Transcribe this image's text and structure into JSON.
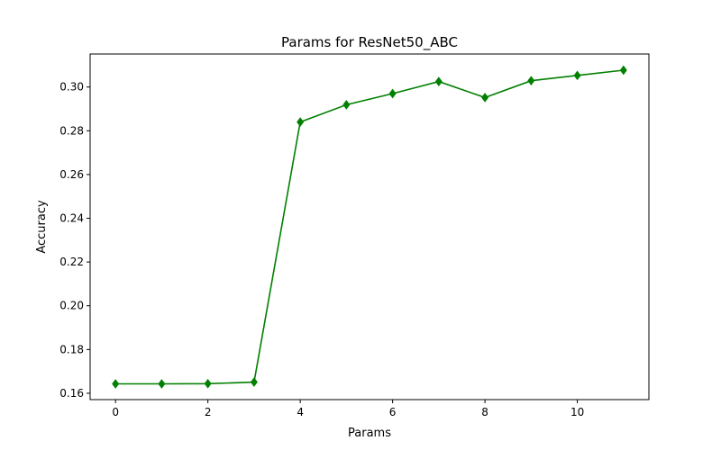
{
  "chart_data": {
    "type": "line",
    "title": "Params for ResNet50_ABC",
    "xlabel": "Params",
    "ylabel": "Accuracy",
    "x": [
      0,
      1,
      2,
      3,
      4,
      5,
      6,
      7,
      8,
      9,
      10,
      11
    ],
    "series": [
      {
        "values": [
          0.1643,
          0.1643,
          0.1644,
          0.1651,
          0.284,
          0.2919,
          0.297,
          0.3025,
          0.2952,
          0.3029,
          0.3053,
          0.3077
        ],
        "color": "#008000",
        "marker": "diamond"
      }
    ],
    "xlim": [
      -0.55,
      11.55
    ],
    "ylim": [
      0.1571,
      0.3151
    ],
    "xticks": [
      0,
      2,
      4,
      6,
      8,
      10
    ],
    "yticks": [
      0.16,
      0.18,
      0.2,
      0.22,
      0.24,
      0.26,
      0.28,
      0.3
    ],
    "xtick_labels": [
      "0",
      "2",
      "4",
      "6",
      "8",
      "10"
    ],
    "ytick_labels": [
      "0.16",
      "0.18",
      "0.20",
      "0.22",
      "0.24",
      "0.26",
      "0.28",
      "0.30"
    ],
    "grid": false,
    "legend": false
  }
}
